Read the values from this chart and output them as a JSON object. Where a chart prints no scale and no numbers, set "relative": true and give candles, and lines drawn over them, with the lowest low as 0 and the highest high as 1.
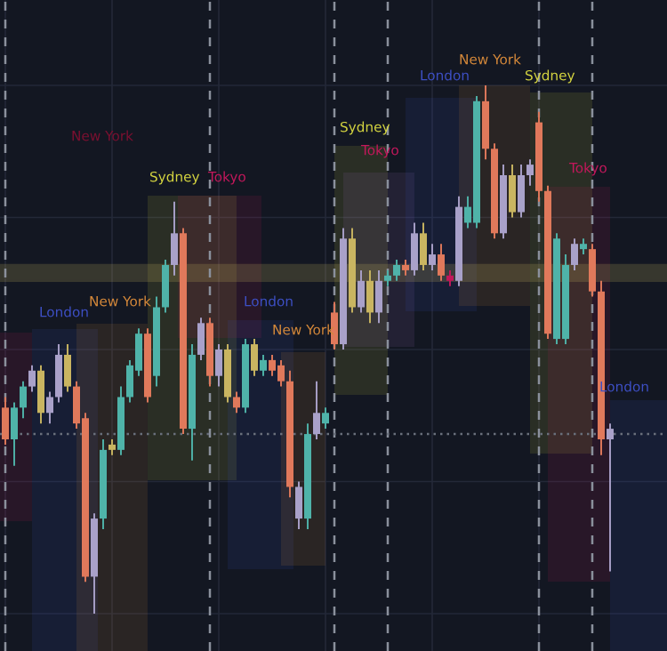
{
  "chart_data": {
    "type": "candlestick",
    "relative": true,
    "categories": [
      null,
      null,
      null,
      null,
      null,
      null,
      null,
      null,
      null,
      null,
      null,
      null,
      null,
      null,
      null,
      null,
      null,
      null,
      null,
      null,
      null,
      null,
      null,
      null,
      null,
      null,
      null,
      null,
      null,
      null,
      null,
      null,
      null,
      null,
      null,
      null,
      null,
      null,
      null,
      null,
      null,
      null,
      null,
      null,
      null,
      null,
      null,
      null,
      null,
      null,
      null,
      null,
      null,
      null,
      null,
      null,
      null,
      null,
      null,
      null,
      null,
      null,
      null,
      null,
      null,
      null,
      null,
      null,
      null
    ],
    "ohlc": [
      [
        0.39,
        0.41,
        0.32,
        0.33
      ],
      [
        0.33,
        0.4,
        0.28,
        0.39
      ],
      [
        0.39,
        0.44,
        0.37,
        0.43
      ],
      [
        0.43,
        0.47,
        0.42,
        0.46
      ],
      [
        0.46,
        0.47,
        0.36,
        0.38
      ],
      [
        0.38,
        0.42,
        0.36,
        0.41
      ],
      [
        0.41,
        0.51,
        0.4,
        0.49
      ],
      [
        0.49,
        0.51,
        0.42,
        0.43
      ],
      [
        0.43,
        0.44,
        0.35,
        0.36
      ],
      [
        0.37,
        0.38,
        0.06,
        0.07
      ],
      [
        0.07,
        0.19,
        0,
        0.18
      ],
      [
        0.18,
        0.33,
        0.16,
        0.31
      ],
      [
        0.31,
        0.33,
        0.3,
        0.32
      ],
      [
        0.31,
        0.43,
        0.3,
        0.41
      ],
      [
        0.41,
        0.48,
        0.4,
        0.47
      ],
      [
        0.46,
        0.54,
        0.45,
        0.53
      ],
      [
        0.53,
        0.54,
        0.4,
        0.41
      ],
      [
        0.45,
        0.6,
        0.43,
        0.58
      ],
      [
        0.58,
        0.67,
        0.57,
        0.66
      ],
      [
        0.66,
        0.78,
        0.64,
        0.72
      ],
      [
        0.72,
        0.73,
        0.34,
        0.35
      ],
      [
        0.35,
        0.51,
        0.29,
        0.49
      ],
      [
        0.49,
        0.56,
        0.48,
        0.55
      ],
      [
        0.55,
        0.56,
        0.43,
        0.45
      ],
      [
        0.45,
        0.51,
        0.43,
        0.5
      ],
      [
        0.5,
        0.51,
        0.4,
        0.41
      ],
      [
        0.41,
        0.42,
        0.38,
        0.39
      ],
      [
        0.39,
        0.52,
        0.38,
        0.51
      ],
      [
        0.51,
        0.52,
        0.45,
        0.46
      ],
      [
        0.46,
        0.49,
        0.45,
        0.48
      ],
      [
        0.48,
        0.49,
        0.45,
        0.46
      ],
      [
        0.47,
        0.48,
        0.43,
        0.44
      ],
      [
        0.44,
        0.46,
        0.22,
        0.24
      ],
      [
        0.24,
        0.25,
        0.16,
        0.18
      ],
      [
        0.18,
        0.36,
        0.16,
        0.34
      ],
      [
        0.34,
        0.44,
        0.33,
        0.38
      ],
      [
        0.36,
        0.39,
        0.35,
        0.38
      ],
      [
        0.57,
        0.59,
        0.5,
        0.51
      ],
      [
        0.51,
        0.73,
        0.5,
        0.71
      ],
      [
        0.71,
        0.73,
        0.57,
        0.58
      ],
      [
        0.58,
        0.65,
        0.57,
        0.63
      ],
      [
        0.63,
        0.65,
        0.55,
        0.57
      ],
      [
        0.57,
        0.65,
        0.55,
        0.63
      ],
      [
        0.63,
        0.65,
        0.62,
        0.64
      ],
      [
        0.64,
        0.67,
        0.63,
        0.66
      ],
      [
        0.66,
        0.67,
        0.64,
        0.65
      ],
      [
        0.65,
        0.74,
        0.64,
        0.72
      ],
      [
        0.72,
        0.74,
        0.65,
        0.66
      ],
      [
        0.66,
        0.7,
        0.65,
        0.68
      ],
      [
        0.68,
        0.7,
        0.63,
        0.64
      ],
      [
        0.64,
        0.65,
        0.62,
        0.63
      ],
      [
        0.63,
        0.79,
        0.62,
        0.77
      ],
      [
        0.74,
        0.79,
        0.73,
        0.77
      ],
      [
        0.74,
        0.98,
        0.73,
        0.97
      ],
      [
        0.97,
        1,
        0.86,
        0.88
      ],
      [
        0.88,
        0.89,
        0.71,
        0.72
      ],
      [
        0.72,
        0.85,
        0.71,
        0.83
      ],
      [
        0.83,
        0.85,
        0.75,
        0.76
      ],
      [
        0.76,
        0.85,
        0.75,
        0.83
      ],
      [
        0.83,
        0.86,
        0.81,
        0.85
      ],
      [
        0.93,
        0.95,
        0.78,
        0.8
      ],
      [
        0.8,
        0.81,
        0.52,
        0.53
      ],
      [
        0.52,
        0.72,
        0.51,
        0.71
      ],
      [
        0.52,
        0.68,
        0.51,
        0.66
      ],
      [
        0.66,
        0.71,
        0.65,
        0.7
      ],
      [
        0.69,
        0.71,
        0.68,
        0.7
      ],
      [
        0.69,
        0.7,
        0.6,
        0.61
      ],
      [
        0.61,
        0.63,
        0.3,
        0.33
      ],
      [
        0.33,
        0.36,
        0.08,
        0.35
      ]
    ],
    "colors": [
      "#e0795b",
      "#4fb3a9",
      "#4fb3a9",
      "#a9a1c9",
      "#c9b561",
      "#a9a1c9",
      "#a9a1c9",
      "#c9b561",
      "#e0795b",
      "#e0795b",
      "#a9a1c9",
      "#4fb3a9",
      "#c9b561",
      "#4fb3a9",
      "#4fb3a9",
      "#4fb3a9",
      "#e0795b",
      "#4fb3a9",
      "#4fb3a9",
      "#a9a1c9",
      "#e0795b",
      "#4fb3a9",
      "#a9a1c9",
      "#e0795b",
      "#a9a1c9",
      "#c9b561",
      "#e0795b",
      "#4fb3a9",
      "#c9b561",
      "#4fb3a9",
      "#e0795b",
      "#e0795b",
      "#e0795b",
      "#a9a1c9",
      "#4fb3a9",
      "#a9a1c9",
      "#4fb3a9",
      "#e0795b",
      "#a9a1c9",
      "#c9b561",
      "#a9a1c9",
      "#c9b561",
      "#a9a1c9",
      "#4fb3a9",
      "#4fb3a9",
      "#e0795b",
      "#a9a1c9",
      "#c9b561",
      "#a9a1c9",
      "#e0795b",
      "#c2185b",
      "#a9a1c9",
      "#4fb3a9",
      "#4fb3a9",
      "#e0795b",
      "#e0795b",
      "#a9a1c9",
      "#c9b561",
      "#a9a1c9",
      "#a9a1c9",
      "#e0795b",
      "#e0795b",
      "#4fb3a9",
      "#4fb3a9",
      "#a9a1c9",
      "#4fb3a9",
      "#e0795b",
      "#e0795b",
      "#a9a1c9"
    ],
    "ref_lines": [
      {
        "axis": "y",
        "value": 0.34,
        "color": "#6a707c",
        "line_style": "dotted"
      }
    ],
    "bands": [
      {
        "axis": "y",
        "from": 0.63,
        "to": 0.66,
        "color": "#c9b561"
      }
    ],
    "grid": true,
    "annotations": [
      "London",
      "New York",
      "Sydney",
      "Tokyo",
      "London",
      "New York",
      "Sydney",
      "Tokyo",
      "London",
      "New York",
      "Sydney",
      "Tokyo",
      "London",
      "New York"
    ]
  }
}
